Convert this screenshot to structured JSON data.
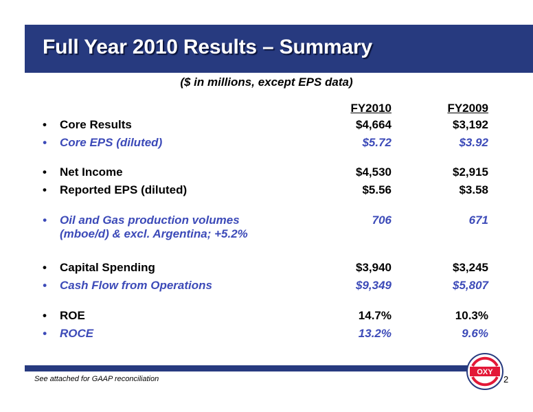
{
  "title": "Full Year 2010 Results – Summary",
  "subtitle": "($ in millions, except EPS data)",
  "columns": [
    "FY2010",
    "FY2009"
  ],
  "rows": [
    {
      "label": "Core Results",
      "fy2010": "$4,664",
      "fy2009": "$3,192",
      "style": "black"
    },
    {
      "label": "Core EPS (diluted)",
      "fy2010": "$5.72",
      "fy2009": "$3.92",
      "style": "blue"
    },
    {
      "label": "Net Income",
      "fy2010": "$4,530",
      "fy2009": "$2,915",
      "style": "black"
    },
    {
      "label": "Reported EPS (diluted)",
      "fy2010": "$5.56",
      "fy2009": "$3.58",
      "style": "black"
    },
    {
      "label": "Oil and Gas production volumes",
      "label2": "(mboe/d) & excl. Argentina; +5.2%",
      "fy2010": "706",
      "fy2009": "671",
      "style": "blue"
    },
    {
      "label": "Capital Spending",
      "fy2010": "$3,940",
      "fy2009": "$3,245",
      "style": "black"
    },
    {
      "label": "Cash Flow from Operations",
      "fy2010": "$9,349",
      "fy2009": "$5,807",
      "style": "blue"
    },
    {
      "label": "ROE",
      "fy2010": "14.7%",
      "fy2009": "10.3%",
      "style": "black"
    },
    {
      "label": "ROCE",
      "fy2010": "13.2%",
      "fy2009": "9.6%",
      "style": "blue"
    }
  ],
  "bullet": "•",
  "footnote": "See attached for GAAP reconciliation",
  "page_number": "2",
  "logo": {
    "text": "OXY",
    "icon": "oxy-logo",
    "color_primary": "#e31837",
    "color_secondary": "#273a7f"
  },
  "colors": {
    "title_bar": "#273a7f",
    "accent_text": "#3c4ab8"
  }
}
